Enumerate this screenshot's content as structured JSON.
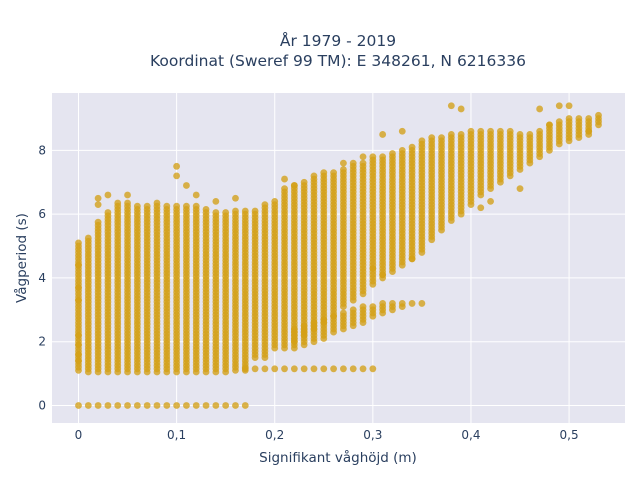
{
  "chart_data": {
    "type": "scatter",
    "title_lines": [
      "År 1979 - 2019",
      "Koordinat (Sweref 99 TM): E 348261, N 6216336"
    ],
    "xlabel": "Signifikant våghöjd (m)",
    "ylabel": "Vågperiod (s)",
    "x_ticks": [
      0,
      0.1,
      0.2,
      0.3,
      0.4,
      0.5
    ],
    "x_tick_labels": [
      "0",
      "0,1",
      "0,2",
      "0,3",
      "0,4",
      "0,5"
    ],
    "y_ticks": [
      0,
      2,
      4,
      6,
      8
    ],
    "y_tick_labels": [
      "0",
      "2",
      "4",
      "6",
      "8"
    ],
    "xlim": [
      -0.027,
      0.557
    ],
    "ylim": [
      -0.55,
      9.8
    ],
    "grid": true,
    "legend": "none",
    "marker_color": "#D4A017",
    "background_color": "#E5E5F0",
    "x_step": 0.01,
    "x_bins": [
      0,
      0.01,
      0.02,
      0.03,
      0.04,
      0.05,
      0.06,
      0.07,
      0.08,
      0.09,
      0.1,
      0.11,
      0.12,
      0.13,
      0.14,
      0.15,
      0.16,
      0.17,
      0.18,
      0.19,
      0.2,
      0.21,
      0.22,
      0.23,
      0.24,
      0.25,
      0.26,
      0.27,
      0.28,
      0.29,
      0.3,
      0.31,
      0.32,
      0.33,
      0.34,
      0.35,
      0.36,
      0.37,
      0.38,
      0.39,
      0.4,
      0.41,
      0.42,
      0.43,
      0.44,
      0.45,
      0.46,
      0.47,
      0.48,
      0.49,
      0.5,
      0.51,
      0.52,
      0.53
    ],
    "main_band_min": [
      1.1,
      1.05,
      1.05,
      1.05,
      1.05,
      1.05,
      1.05,
      1.05,
      1.05,
      1.05,
      1.05,
      1.05,
      1.05,
      1.05,
      1.05,
      1.05,
      1.1,
      1.1,
      1.5,
      1.6,
      1.8,
      1.8,
      2.0,
      2.2,
      2.4,
      2.6,
      2.8,
      3.1,
      3.3,
      3.5,
      3.8,
      4.0,
      4.2,
      4.4,
      4.6,
      4.8,
      5.2,
      5.5,
      5.8,
      6.0,
      6.3,
      6.6,
      6.8,
      7.0,
      7.2,
      7.4,
      7.6,
      7.8,
      8.0,
      8.2,
      8.3,
      8.4,
      8.5,
      8.8
    ],
    "main_band_max": [
      5.0,
      5.3,
      5.8,
      6.1,
      6.4,
      6.4,
      6.3,
      6.3,
      6.4,
      6.3,
      6.3,
      6.3,
      6.3,
      6.2,
      6.1,
      6.1,
      6.1,
      6.1,
      6.1,
      6.3,
      6.4,
      6.8,
      6.9,
      7.0,
      7.2,
      7.3,
      7.3,
      7.4,
      7.5,
      7.6,
      7.8,
      7.8,
      7.9,
      8.0,
      8.1,
      8.3,
      8.4,
      8.4,
      8.5,
      8.5,
      8.6,
      8.6,
      8.6,
      8.6,
      8.6,
      8.5,
      8.5,
      8.6,
      8.8,
      8.9,
      9.0,
      9.0,
      9.0,
      9.1
    ],
    "zero_row_x": [
      0,
      0.01,
      0.02,
      0.03,
      0.04,
      0.05,
      0.06,
      0.07,
      0.08,
      0.09,
      0.1,
      0.11,
      0.12,
      0.13,
      0.14,
      0.15,
      0.16,
      0.17
    ],
    "zero_row_y": 0.0,
    "low_band_x": [
      0.17,
      0.18,
      0.19,
      0.2,
      0.21,
      0.22,
      0.23,
      0.24,
      0.25,
      0.26,
      0.27,
      0.28,
      0.29,
      0.3
    ],
    "low_band_y": [
      1.15,
      1.15,
      1.15,
      1.15,
      1.15,
      1.15,
      1.15,
      1.15,
      1.15,
      1.15,
      1.15,
      1.15,
      1.15,
      1.15
    ],
    "mid_band_x": [
      0.22,
      0.23,
      0.24,
      0.25,
      0.26,
      0.27,
      0.28,
      0.29,
      0.3,
      0.31,
      0.32,
      0.33,
      0.34
    ],
    "mid_band_min": [
      1.8,
      1.9,
      2.0,
      2.1,
      2.3,
      2.4,
      2.5,
      2.6,
      2.8,
      2.9,
      3.0,
      3.1,
      3.2
    ],
    "mid_band_max": [
      2.4,
      2.5,
      2.6,
      2.7,
      2.8,
      2.9,
      3.0,
      3.1,
      3.1,
      3.2,
      3.2,
      3.2,
      3.2
    ],
    "outliers": [
      {
        "x": 0.0,
        "y": 1.4
      },
      {
        "x": 0.0,
        "y": 1.6
      },
      {
        "x": 0.0,
        "y": 1.9
      },
      {
        "x": 0.0,
        "y": 2.2
      },
      {
        "x": 0.0,
        "y": 3.3
      },
      {
        "x": 0.0,
        "y": 3.7
      },
      {
        "x": 0.0,
        "y": 4.4
      },
      {
        "x": 0.0,
        "y": 5.1
      },
      {
        "x": 0.02,
        "y": 6.5
      },
      {
        "x": 0.02,
        "y": 6.3
      },
      {
        "x": 0.03,
        "y": 6.6
      },
      {
        "x": 0.05,
        "y": 6.6
      },
      {
        "x": 0.1,
        "y": 7.5
      },
      {
        "x": 0.1,
        "y": 7.2
      },
      {
        "x": 0.11,
        "y": 6.9
      },
      {
        "x": 0.12,
        "y": 6.6
      },
      {
        "x": 0.14,
        "y": 6.4
      },
      {
        "x": 0.16,
        "y": 6.5
      },
      {
        "x": 0.19,
        "y": 1.5
      },
      {
        "x": 0.21,
        "y": 7.1
      },
      {
        "x": 0.22,
        "y": 6.9
      },
      {
        "x": 0.27,
        "y": 7.6
      },
      {
        "x": 0.28,
        "y": 7.6
      },
      {
        "x": 0.29,
        "y": 7.8
      },
      {
        "x": 0.31,
        "y": 8.5
      },
      {
        "x": 0.33,
        "y": 8.6
      },
      {
        "x": 0.3,
        "y": 4.3
      },
      {
        "x": 0.31,
        "y": 4.1
      },
      {
        "x": 0.35,
        "y": 3.2
      },
      {
        "x": 0.34,
        "y": 4.6
      },
      {
        "x": 0.38,
        "y": 9.4
      },
      {
        "x": 0.39,
        "y": 9.3
      },
      {
        "x": 0.41,
        "y": 6.2
      },
      {
        "x": 0.42,
        "y": 6.4
      },
      {
        "x": 0.47,
        "y": 9.3
      },
      {
        "x": 0.48,
        "y": 8.8
      },
      {
        "x": 0.49,
        "y": 9.4
      },
      {
        "x": 0.5,
        "y": 9.4
      },
      {
        "x": 0.52,
        "y": 8.6
      },
      {
        "x": 0.45,
        "y": 6.8
      }
    ]
  }
}
